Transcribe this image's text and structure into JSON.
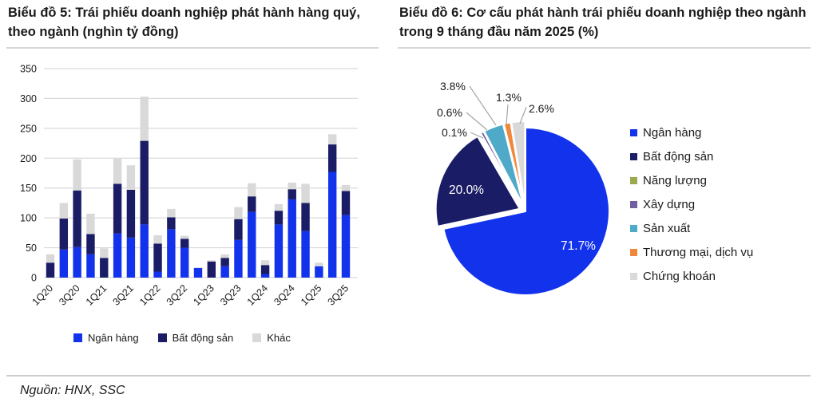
{
  "chart5": {
    "title": "Biểu đồ 5: Trái phiếu doanh nghiệp phát hành hàng quý, theo ngành (nghìn tỷ đồng)"
  },
  "chart6": {
    "title": "Biểu đồ 6: Cơ cấu phát hành trái phiếu doanh nghiệp theo ngành trong 9 tháng đầu năm 2025 (%)"
  },
  "source": "Nguồn: HNX, SSC",
  "colors": {
    "bank_blue": "#1232EC",
    "real_estate_navy": "#1A1C66",
    "other_gray": "#D9D9D9",
    "energy_green": "#9AAA4F",
    "construction_purple": "#7160A0",
    "manufacturing_teal": "#4FA9C9",
    "trade_orange": "#F0883C",
    "securities_gray": "#D9D9D9",
    "gridline": "#DADADA",
    "text": "#1A1A1A",
    "leader_line": "#A6A6A6"
  },
  "chart_data": [
    {
      "type": "bar",
      "stacked": true,
      "title": "Biểu đồ 5: Trái phiếu doanh nghiệp phát hành hàng quý, theo ngành (nghìn tỷ đồng)",
      "categories": [
        "1Q20",
        "2Q20",
        "3Q20",
        "4Q20",
        "1Q21",
        "2Q21",
        "3Q21",
        "4Q21",
        "1Q22",
        "2Q22",
        "3Q22",
        "4Q22",
        "1Q23",
        "2Q23",
        "3Q23",
        "4Q23",
        "1Q24",
        "2Q24",
        "3Q24",
        "4Q24",
        "1Q25",
        "2Q25",
        "3Q25"
      ],
      "x_tick_labels_shown": [
        "1Q20",
        "3Q20",
        "1Q21",
        "3Q21",
        "1Q22",
        "3Q22",
        "1Q23",
        "3Q23",
        "1Q24",
        "3Q24",
        "1Q25",
        "3Q25"
      ],
      "series": [
        {
          "name": "Ngân hàng",
          "color": "#1232EC",
          "values": [
            0,
            47,
            51,
            39,
            0,
            74,
            67,
            89,
            10,
            81,
            50,
            16,
            0,
            19,
            63,
            110,
            6,
            89,
            131,
            78,
            19,
            177,
            105
          ]
        },
        {
          "name": "Bất động sản",
          "color": "#1A1C66",
          "values": [
            25,
            52,
            95,
            34,
            33,
            83,
            80,
            140,
            47,
            20,
            15,
            0,
            27,
            14,
            35,
            26,
            15,
            23,
            17,
            47,
            0,
            46,
            40
          ]
        },
        {
          "name": "Khác",
          "color": "#D9D9D9",
          "values": [
            14,
            26,
            52,
            34,
            16,
            42,
            41,
            74,
            14,
            14,
            5,
            1,
            2,
            6,
            20,
            22,
            8,
            11,
            11,
            32,
            6,
            17,
            10
          ]
        }
      ],
      "xlabel": "",
      "ylabel": "",
      "ylim": [
        0,
        350
      ],
      "ytick_step": 50,
      "yticks": [
        0,
        50,
        100,
        150,
        200,
        250,
        300,
        350
      ],
      "grid": true,
      "legend_position": "bottom"
    },
    {
      "type": "pie",
      "title": "Biểu đồ 6: Cơ cấu phát hành trái phiếu doanh nghiệp theo ngành trong 9 tháng đầu năm 2025 (%)",
      "unit": "%",
      "start_angle_deg": 0,
      "direction": "clockwise",
      "legend_position": "right",
      "slices": [
        {
          "label": "Ngân hàng",
          "value": 71.7,
          "color": "#1232EC",
          "label_style": "inside"
        },
        {
          "label": "Bất động sản",
          "value": 20.0,
          "color": "#1A1C66",
          "label_style": "inside"
        },
        {
          "label": "Năng lượng",
          "value": 0.1,
          "color": "#9AAA4F",
          "label_style": "callout"
        },
        {
          "label": "Xây dựng",
          "value": 0.6,
          "color": "#7160A0",
          "label_style": "callout"
        },
        {
          "label": "Sản xuất",
          "value": 3.8,
          "color": "#4FA9C9",
          "label_style": "callout"
        },
        {
          "label": "Thương mại, dịch vụ",
          "value": 1.3,
          "color": "#F0883C",
          "label_style": "callout"
        },
        {
          "label": "Chứng khoán",
          "value": 2.6,
          "color": "#D9D9D9",
          "label_style": "callout"
        }
      ]
    }
  ]
}
